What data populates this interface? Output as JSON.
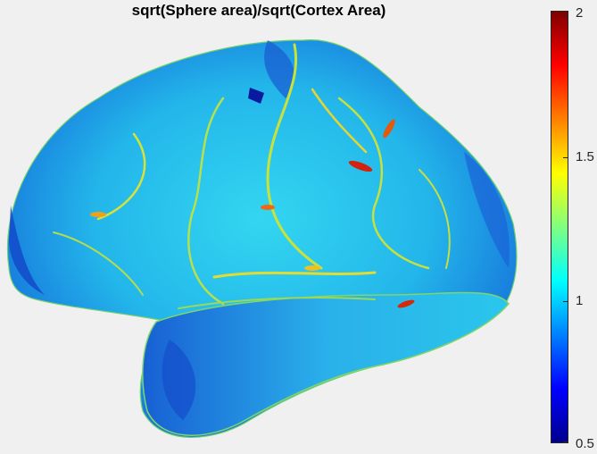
{
  "figure": {
    "title": "sqrt(Sphere area)/sqrt(Cortex Area)",
    "background": "#f0f0f0",
    "surface_description_color_low": "#1a4fd6",
    "surface_color_mid": "#29c8e8",
    "surface_color_high": "#d42a0a"
  },
  "colorbar": {
    "colormap": "jet",
    "min": 0.5,
    "max": 2,
    "ticks": [
      "2",
      "1.5",
      "1",
      "0.5"
    ],
    "colors": [
      "#00008f",
      "#0000ff",
      "#0080ff",
      "#00ffff",
      "#80ff80",
      "#ffff00",
      "#ff8000",
      "#ff0000",
      "#800000"
    ]
  }
}
